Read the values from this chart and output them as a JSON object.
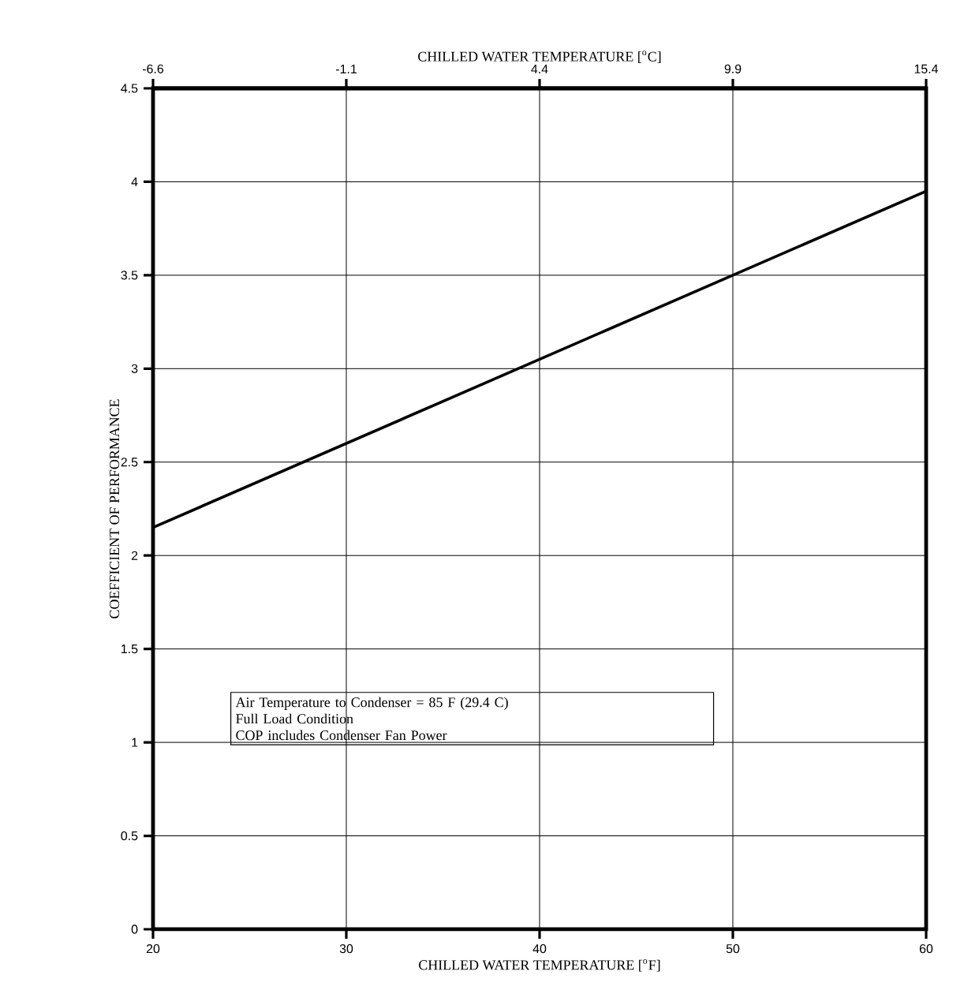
{
  "chart_data": {
    "type": "line",
    "xlabel": "CHILLED WATER TEMPERATURE [$^{o}$F]",
    "x2label": "CHILLED WATER TEMPERATURE [$^{o}$C]",
    "ylabel": "COEFFICIENT OF PERFORMANCE",
    "series": [
      {
        "color": "#000000",
        "x": [
          20,
          60
        ],
        "values": [
          2.15,
          3.95
        ]
      }
    ],
    "xlim": [
      20,
      60
    ],
    "xticks": [
      20,
      30,
      40,
      50,
      60
    ],
    "x2lim": [
      -6.6,
      15.4
    ],
    "x2ticks": [
      -6.6,
      -1.1,
      4.4,
      9.9,
      15.4
    ],
    "ylim": [
      0,
      4.5
    ],
    "yticks": [
      0,
      0.5,
      1,
      1.5,
      2,
      2.5,
      3,
      3.5,
      4,
      4.5
    ],
    "grid": true,
    "line_style": "solid",
    "annotations": [
      "Air Temperature to Condenser = 85 F (29.4 C)",
      "Full Load Condition",
      "COP includes Condenser Fan Power"
    ]
  }
}
